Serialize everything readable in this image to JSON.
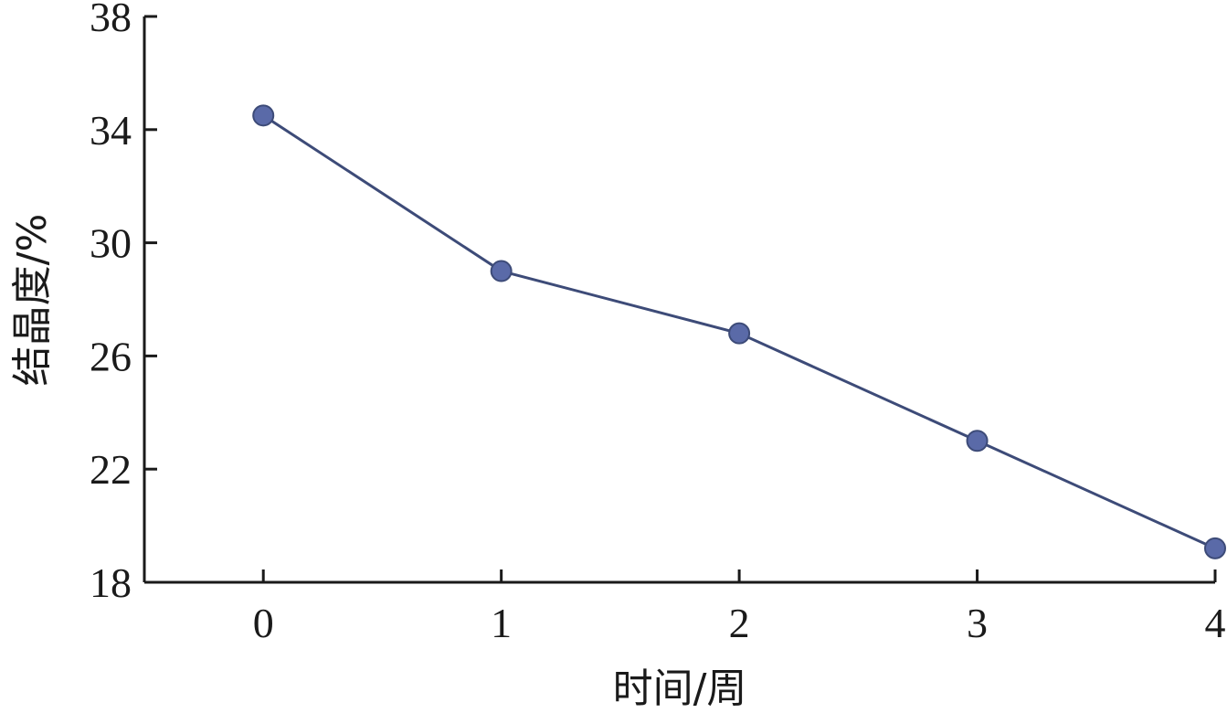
{
  "chart_data": {
    "type": "line",
    "title": "",
    "xlabel": "时间/周",
    "ylabel": "结晶度/%",
    "x": [
      0,
      1,
      2,
      3,
      4
    ],
    "xticks": [
      "0",
      "1",
      "2",
      "3",
      "4"
    ],
    "xlim": [
      -0.5,
      4
    ],
    "ylim": [
      18,
      38
    ],
    "yticks": [
      "18",
      "22",
      "26",
      "30",
      "34",
      "38"
    ],
    "grid": false,
    "legend": "none",
    "series": [
      {
        "values": [
          34.5,
          29.0,
          26.8,
          23.0,
          19.2
        ],
        "color": "#5a6aa8",
        "line_color": "#3d4b78"
      }
    ]
  }
}
